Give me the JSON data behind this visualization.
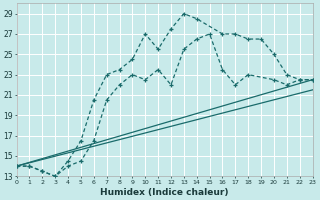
{
  "xlabel": "Humidex (Indice chaleur)",
  "background_color": "#c8eaea",
  "grid_color": "#b0d8d8",
  "line_color": "#1a6b6b",
  "xlim": [
    0,
    23
  ],
  "ylim": [
    13,
    30
  ],
  "xticks": [
    0,
    1,
    2,
    3,
    4,
    5,
    6,
    7,
    8,
    9,
    10,
    11,
    12,
    13,
    14,
    15,
    16,
    17,
    18,
    19,
    20,
    21,
    22,
    23
  ],
  "yticks": [
    13,
    15,
    17,
    19,
    21,
    23,
    25,
    27,
    29
  ],
  "curve1_x": [
    0,
    1,
    2,
    3,
    4,
    5,
    6,
    7,
    8,
    9,
    10,
    11,
    12,
    13,
    14,
    15,
    16,
    17,
    18,
    20,
    21,
    22,
    23
  ],
  "curve1_y": [
    14,
    14,
    13.5,
    13,
    14,
    14.5,
    16.5,
    20.5,
    22,
    23,
    22.5,
    23.5,
    22,
    25.5,
    26.5,
    27,
    23.5,
    22,
    23,
    22.5,
    22,
    22.5,
    22.5
  ],
  "curve2_x": [
    0,
    1,
    2,
    3,
    4,
    5,
    6,
    7,
    8,
    9,
    10,
    11,
    12,
    13,
    14,
    16,
    17,
    18,
    19,
    20,
    21,
    22,
    23
  ],
  "curve2_y": [
    14,
    14,
    13.5,
    13,
    14.5,
    16.5,
    20.5,
    23,
    23.5,
    24.5,
    27,
    25.5,
    27.5,
    29,
    28.5,
    27,
    27,
    26.5,
    26.5,
    25,
    23,
    22.5,
    22.5
  ],
  "line1_x": [
    0,
    23
  ],
  "line1_y": [
    14,
    22.5
  ],
  "line2_x": [
    0,
    23
  ],
  "line2_y": [
    14,
    21.5
  ]
}
